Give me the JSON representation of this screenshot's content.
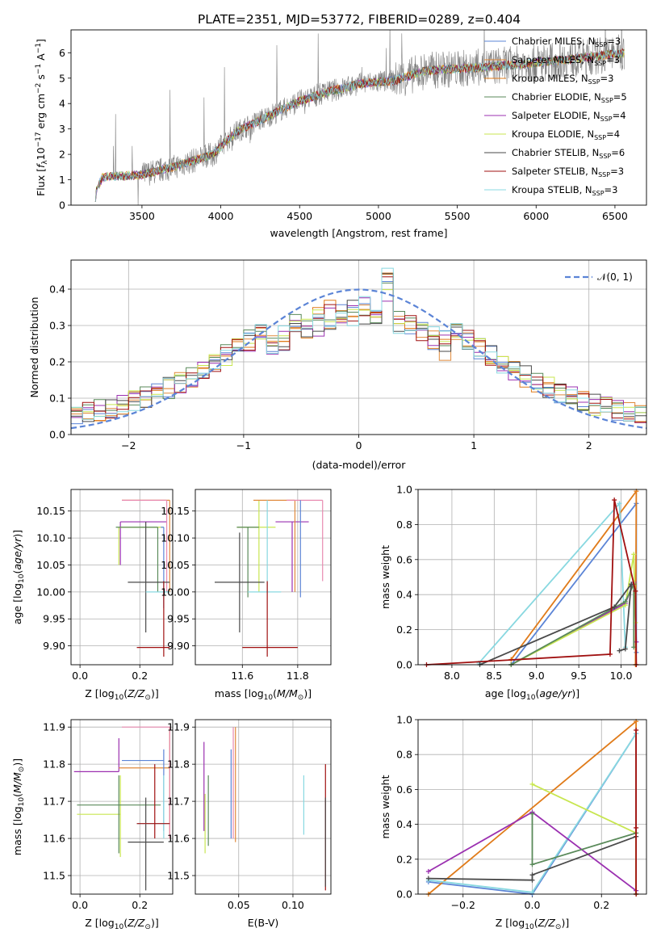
{
  "figure": {
    "title": "PLATE=2351, MJD=53772, FIBERID=0289, z=0.404"
  },
  "colors": {
    "chabrier_miles": "#5b84d6",
    "salpeter_miles": "#e08a3c",
    "kroupa_miles": "#e07b1a",
    "chabrier_elodie": "#5a8a5a",
    "salpeter_elodie": "#9b30b0",
    "kroupa_elodie": "#c8e650",
    "chabrier_stelib": "#4a4a4a",
    "salpeter_stelib": "#a01010",
    "kroupa_stelib": "#88d8e0",
    "pink": "#e88ab0",
    "gray_data": "#808080"
  },
  "chart_data": [
    {
      "id": "spectrum",
      "type": "line",
      "title": "PLATE=2351, MJD=53772, FIBERID=0289, z=0.404",
      "xlabel": "wavelength [Angstrom, rest frame]",
      "ylabel": "Flux [f_λ10^-17 erg cm^-2 s^-1 A^-1]",
      "xlim": [
        3050,
        6700
      ],
      "ylim": [
        0,
        6.9
      ],
      "xticks": [
        "3500",
        "4000",
        "4500",
        "5000",
        "5500",
        "6000",
        "6500"
      ],
      "yticks": [
        "0",
        "1",
        "2",
        "3",
        "4",
        "5",
        "6"
      ],
      "grid": false,
      "legend_position": "top-right",
      "legend": [
        {
          "name": "Chabrier MILES, N_SSP=3",
          "sub": "SSP",
          "main": "Chabrier MILES, N",
          "tail": "=3",
          "color": "#5b84d6"
        },
        {
          "name": "Salpeter MILES, N_SSP=3",
          "sub": "SSP",
          "main": "Salpeter MILES, N",
          "tail": "=3",
          "color": "#e08a3c"
        },
        {
          "name": "Kroupa MILES, N_SSP=3",
          "sub": "SSP",
          "main": "Kroupa MILES, N",
          "tail": "=3",
          "color": "#e07b1a"
        },
        {
          "name": "Chabrier ELODIE, N_SSP=5",
          "sub": "SSP",
          "main": "Chabrier ELODIE, N",
          "tail": "=5",
          "color": "#5a8a5a"
        },
        {
          "name": "Salpeter ELODIE, N_SSP=4",
          "sub": "SSP",
          "main": "Salpeter ELODIE, N",
          "tail": "=4",
          "color": "#9b30b0"
        },
        {
          "name": "Kroupa ELODIE, N_SSP=4",
          "sub": "SSP",
          "main": "Kroupa ELODIE, N",
          "tail": "=4",
          "color": "#c8e650"
        },
        {
          "name": "Chabrier STELIB, N_SSP=6",
          "sub": "SSP",
          "main": "Chabrier STELIB, N",
          "tail": "=6",
          "color": "#4a4a4a"
        },
        {
          "name": "Salpeter STELIB, N_SSP=3",
          "sub": "SSP",
          "main": "Salpeter STELIB, N",
          "tail": "=3",
          "color": "#a01010"
        },
        {
          "name": "Kroupa STELIB, N_SSP=3",
          "sub": "SSP",
          "main": "Kroupa STELIB, N",
          "tail": "=3",
          "color": "#88d8e0"
        }
      ],
      "model_trend": [
        [
          3200,
          0
        ],
        [
          3210,
          0.6
        ],
        [
          3250,
          1.1
        ],
        [
          3500,
          1.2
        ],
        [
          3700,
          1.5
        ],
        [
          3950,
          2.0
        ],
        [
          4100,
          2.9
        ],
        [
          4300,
          3.5
        ],
        [
          4500,
          4.1
        ],
        [
          4700,
          4.5
        ],
        [
          4900,
          4.8
        ],
        [
          5100,
          4.9
        ],
        [
          5300,
          5.3
        ],
        [
          5600,
          5.4
        ],
        [
          6000,
          5.6
        ],
        [
          6300,
          5.8
        ],
        [
          6550,
          6.0
        ]
      ]
    },
    {
      "id": "residuals",
      "type": "bar",
      "xlabel": "(data-model)/error",
      "ylabel": "Normed distribution",
      "xlim": [
        -2.5,
        2.5
      ],
      "ylim": [
        0,
        0.48
      ],
      "xticks": [
        "−2",
        "−1",
        "0",
        "1",
        "2"
      ],
      "yticks": [
        "0.0",
        "0.1",
        "0.2",
        "0.3",
        "0.4"
      ],
      "grid": true,
      "legend": [
        {
          "name": "𝒩(0, 1)",
          "color": "#5b84d6"
        }
      ],
      "legend_position": "top-right",
      "bin_width": 0.1,
      "bins_from": -2.5
    },
    {
      "id": "age_vs_Z",
      "type": "scatter",
      "xlabel": "Z [log10(Z/Z⊙)]",
      "ylabel": "age  [log10(age/yr)]",
      "xlim": [
        -0.03,
        0.31
      ],
      "ylim": [
        9.865,
        10.19
      ],
      "xticks": [
        "0.0",
        "0.2"
      ],
      "yticks": [
        "9.90",
        "9.95",
        "10.00",
        "10.05",
        "10.10",
        "10.15"
      ],
      "grid": true,
      "points": [
        {
          "x": 0.135,
          "y": 10.13,
          "xe": [
            0.29,
            0.135
          ],
          "ye": [
            10.13,
            10.05
          ],
          "color": "#9b30b0"
        },
        {
          "x": 0.13,
          "y": 10.12,
          "xe": [
            0.28,
            0.13
          ],
          "ye": [
            10.12,
            10.05
          ],
          "color": "#c8e650"
        },
        {
          "x": 0.26,
          "y": 10.12,
          "xe": [
            0.12,
            0.26
          ],
          "ye": [
            10.12,
            10.0
          ],
          "color": "#5a8a5a"
        },
        {
          "x": 0.3,
          "y": 10.17,
          "xe": [
            0.14,
            0.3
          ],
          "ye": [
            10.17,
            10.0
          ],
          "color": "#e08a3c"
        },
        {
          "x": 0.29,
          "y": 10.17,
          "xe": [
            0.14,
            0.29
          ],
          "ye": [
            10.17,
            10.0
          ],
          "color": "#e88ab0"
        },
        {
          "x": 0.28,
          "y": 10.12,
          "xe": [
            0.27,
            0.28
          ],
          "ye": [
            10.12,
            9.97
          ],
          "color": "#5b84d6"
        },
        {
          "x": 0.22,
          "y": 10.018,
          "xe": [
            0.16,
            0.3
          ],
          "ye": [
            10.13,
            9.925
          ],
          "color": "#4a4a4a"
        },
        {
          "x": 0.28,
          "y": 10.0,
          "xe": [
            0.22,
            0.3
          ],
          "ye": [
            10.0,
            10.0
          ],
          "color": "#88d8e0"
        },
        {
          "x": 0.28,
          "y": 9.897,
          "xe": [
            0.19,
            0.3
          ],
          "ye": [
            10.02,
            9.88
          ],
          "color": "#a01010"
        }
      ]
    },
    {
      "id": "age_vs_mass",
      "type": "scatter",
      "xlabel": "mass [log10(M/M⊙)]",
      "ylabel": "",
      "xlim": [
        11.43,
        11.92
      ],
      "ylim": [
        9.865,
        10.19
      ],
      "xticks": [
        "11.6",
        "11.8"
      ],
      "yticks": [
        "9.90",
        "9.95",
        "10.00",
        "10.05",
        "10.10",
        "10.15"
      ],
      "grid": true,
      "points": [
        {
          "x": 11.78,
          "y": 10.13,
          "xe": [
            11.72,
            11.84
          ],
          "ye": [
            10.13,
            10.0
          ],
          "color": "#9b30b0"
        },
        {
          "x": 11.66,
          "y": 10.12,
          "xe": [
            11.58,
            11.72
          ],
          "ye": [
            10.17,
            10.0
          ],
          "color": "#c8e650"
        },
        {
          "x": 11.62,
          "y": 10.12,
          "xe": [
            11.58,
            11.66
          ],
          "ye": [
            10.12,
            9.99
          ],
          "color": "#5a8a5a"
        },
        {
          "x": 11.79,
          "y": 10.17,
          "xe": [
            11.64,
            11.79
          ],
          "ye": [
            10.17,
            10.0
          ],
          "color": "#e08a3c"
        },
        {
          "x": 11.89,
          "y": 10.17,
          "xe": [
            11.76,
            11.89
          ],
          "ye": [
            10.17,
            10.02
          ],
          "color": "#e88ab0"
        },
        {
          "x": 11.81,
          "y": 10.12,
          "xe": [
            11.81,
            11.81
          ],
          "ye": [
            10.17,
            9.99
          ],
          "color": "#5b84d6"
        },
        {
          "x": 11.59,
          "y": 10.018,
          "xe": [
            11.5,
            11.68
          ],
          "ye": [
            10.11,
            9.925
          ],
          "color": "#4a4a4a"
        },
        {
          "x": 11.69,
          "y": 10.0,
          "xe": [
            11.62,
            11.74
          ],
          "ye": [
            10.17,
            10.0
          ],
          "color": "#88d8e0"
        },
        {
          "x": 11.69,
          "y": 9.897,
          "xe": [
            11.6,
            11.8
          ],
          "ye": [
            10.02,
            9.88
          ],
          "color": "#a01010"
        }
      ]
    },
    {
      "id": "massweight_vs_age",
      "type": "line",
      "xlabel": "age  [log10(age/yr)]",
      "ylabel": "mass weight",
      "xlim": [
        7.6,
        10.3
      ],
      "ylim": [
        0,
        1.0
      ],
      "xticks": [
        "8.0",
        "8.5",
        "9.0",
        "9.5",
        "10.0"
      ],
      "yticks": [
        "0.0",
        "0.2",
        "0.4",
        "0.6",
        "0.8",
        "1.0"
      ],
      "grid": true,
      "series": [
        {
          "color": "#5b84d6",
          "points": [
            [
              8.7,
              0.0
            ],
            [
              10.18,
              0.92
            ],
            [
              10.18,
              0.07
            ]
          ]
        },
        {
          "color": "#e07b1a",
          "points": [
            [
              8.7,
              0.03
            ],
            [
              10.18,
              0.99
            ],
            [
              10.17,
              0.0
            ]
          ]
        },
        {
          "color": "#88d8e0",
          "points": [
            [
              8.32,
              0.01
            ],
            [
              9.98,
              0.92
            ],
            [
              10.05,
              0.1
            ]
          ]
        },
        {
          "color": "#9b30b0",
          "points": [
            [
              8.7,
              0.0
            ],
            [
              10.05,
              0.35
            ],
            [
              10.15,
              0.47
            ],
            [
              10.18,
              0.13
            ]
          ]
        },
        {
          "color": "#c8e650",
          "points": [
            [
              8.7,
              0.0
            ],
            [
              10.05,
              0.34
            ],
            [
              10.15,
              0.63
            ],
            [
              10.17,
              0.24
            ]
          ]
        },
        {
          "color": "#5a8a5a",
          "points": [
            [
              8.7,
              0.0
            ],
            [
              10.05,
              0.36
            ],
            [
              10.15,
              0.46
            ],
            [
              10.15,
              0.1
            ]
          ]
        },
        {
          "color": "#4a4a4a",
          "points": [
            [
              8.33,
              0.0
            ],
            [
              9.92,
              0.33
            ],
            [
              10.12,
              0.46
            ],
            [
              10.05,
              0.09
            ],
            [
              9.98,
              0.08
            ]
          ]
        },
        {
          "color": "#a01010",
          "points": [
            [
              7.7,
              0.0
            ],
            [
              9.87,
              0.06
            ],
            [
              9.92,
              0.94
            ],
            [
              10.17,
              0.42
            ],
            [
              10.18,
              0.0
            ]
          ]
        }
      ]
    },
    {
      "id": "mass_vs_Z",
      "type": "scatter",
      "xlabel": "Z [log10(Z/Z⊙)]",
      "ylabel": "mass [log10(M/M⊙)]",
      "xlim": [
        -0.03,
        0.31
      ],
      "ylim": [
        11.45,
        11.92
      ],
      "xticks": [
        "0.0",
        "0.2"
      ],
      "yticks": [
        "11.5",
        "11.6",
        "11.7",
        "11.8",
        "11.9"
      ],
      "grid": true,
      "points": [
        {
          "x": 0.13,
          "y": 11.78,
          "xe": [
            -0.02,
            0.13
          ],
          "ye": [
            11.87,
            11.78
          ],
          "color": "#9b30b0"
        },
        {
          "x": 0.135,
          "y": 11.665,
          "xe": [
            -0.01,
            0.135
          ],
          "ye": [
            11.77,
            11.55
          ],
          "color": "#c8e650"
        },
        {
          "x": 0.13,
          "y": 11.69,
          "xe": [
            -0.01,
            0.27
          ],
          "ye": [
            11.77,
            11.56
          ],
          "color": "#5a8a5a"
        },
        {
          "x": 0.3,
          "y": 11.79,
          "xe": [
            0.13,
            0.3
          ],
          "ye": [
            11.9,
            11.6
          ],
          "color": "#e08a3c"
        },
        {
          "x": 0.3,
          "y": 11.9,
          "xe": [
            0.14,
            0.3
          ],
          "ye": [
            11.9,
            11.6
          ],
          "color": "#e88ab0"
        },
        {
          "x": 0.28,
          "y": 11.81,
          "xe": [
            0.14,
            0.28
          ],
          "ye": [
            11.84,
            11.62
          ],
          "color": "#5b84d6"
        },
        {
          "x": 0.22,
          "y": 11.59,
          "xe": [
            0.16,
            0.28
          ],
          "ye": [
            11.71,
            11.46
          ],
          "color": "#4a4a4a"
        },
        {
          "x": 0.28,
          "y": 11.64,
          "xe": [
            0.19,
            0.3
          ],
          "ye": [
            11.77,
            11.6
          ],
          "color": "#88d8e0"
        },
        {
          "x": 0.25,
          "y": 11.64,
          "xe": [
            0.19,
            0.3
          ],
          "ye": [
            11.8,
            11.6
          ],
          "color": "#a01010"
        }
      ]
    },
    {
      "id": "mass_vs_ebv",
      "type": "scatter",
      "xlabel": "E(B-V)",
      "ylabel": "",
      "xlim": [
        0.01,
        0.135
      ],
      "ylim": [
        11.45,
        11.92
      ],
      "xticks": [
        "0.05",
        "0.10"
      ],
      "yticks": [
        "11.5",
        "11.6",
        "11.7",
        "11.8",
        "11.9"
      ],
      "grid": true,
      "segments": [
        {
          "x": 0.018,
          "y": [
            11.62,
            11.86
          ],
          "color": "#9b30b0"
        },
        {
          "x": 0.019,
          "y": [
            11.56,
            11.72
          ],
          "color": "#c8e650"
        },
        {
          "x": 0.022,
          "y": [
            11.58,
            11.77
          ],
          "color": "#5a8a5a"
        },
        {
          "x": 0.043,
          "y": [
            11.6,
            11.84
          ],
          "color": "#5b84d6"
        },
        {
          "x": 0.047,
          "y": [
            11.59,
            11.9
          ],
          "color": "#e08a3c"
        },
        {
          "x": 0.045,
          "y": [
            11.6,
            11.9
          ],
          "color": "#e88ab0"
        },
        {
          "x": 0.11,
          "y": [
            11.61,
            11.77
          ],
          "color": "#88d8e0"
        },
        {
          "x": 0.13,
          "y": [
            11.46,
            11.8
          ],
          "color": "#a01010"
        },
        {
          "x": 0.13,
          "y": [
            11.47,
            11.71
          ],
          "color": "#4a4a4a"
        }
      ]
    },
    {
      "id": "massweight_vs_Z",
      "type": "line",
      "xlabel": "Z [log10(Z/Z⊙)]",
      "ylabel": "mass weight",
      "xlim": [
        -0.33,
        0.33
      ],
      "ylim": [
        0,
        1.0
      ],
      "xticks": [
        "−0.2",
        "0.0",
        "0.2"
      ],
      "yticks": [
        "0.0",
        "0.2",
        "0.4",
        "0.6",
        "0.8",
        "1.0"
      ],
      "grid": true,
      "series": [
        {
          "color": "#5b84d6",
          "points": [
            [
              -0.3,
              0.07
            ],
            [
              0.0,
              0.0
            ],
            [
              0.3,
              0.92
            ],
            [
              0.3,
              0.0
            ]
          ]
        },
        {
          "color": "#e07b1a",
          "points": [
            [
              -0.3,
              0.0
            ],
            [
              0.3,
              0.99
            ],
            [
              0.3,
              0.0
            ]
          ]
        },
        {
          "color": "#88d8e0",
          "points": [
            [
              -0.3,
              0.08
            ],
            [
              0.0,
              0.01
            ],
            [
              0.3,
              0.92
            ]
          ]
        },
        {
          "color": "#9b30b0",
          "points": [
            [
              -0.3,
              0.13
            ],
            [
              0.0,
              0.47
            ],
            [
              0.3,
              0.02
            ]
          ]
        },
        {
          "color": "#c8e650",
          "points": [
            [
              0.0,
              0.63
            ],
            [
              0.3,
              0.35
            ],
            [
              0.3,
              0.0
            ]
          ]
        },
        {
          "color": "#5a8a5a",
          "points": [
            [
              0.0,
              0.46
            ],
            [
              0.0,
              0.17
            ],
            [
              0.3,
              0.35
            ]
          ]
        },
        {
          "color": "#4a4a4a",
          "points": [
            [
              -0.3,
              0.09
            ],
            [
              0.0,
              0.08
            ],
            [
              0.0,
              0.11
            ],
            [
              0.3,
              0.33
            ]
          ]
        },
        {
          "color": "#a01010",
          "points": [
            [
              0.3,
              0.0
            ],
            [
              0.3,
              0.94
            ],
            [
              0.3,
              0.38
            ]
          ]
        }
      ]
    }
  ]
}
